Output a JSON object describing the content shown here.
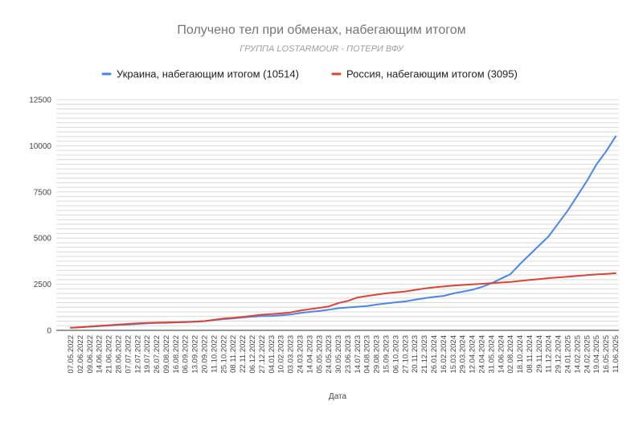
{
  "chart_data": {
    "type": "line",
    "title": "Получено тел при обменах, набегающим итогом",
    "subtitle": "ГРУППА LOSTARMOUR - ПОТЕРИ ВФУ",
    "xlabel": "Дата",
    "ylabel": "",
    "ylim": [
      0,
      12500
    ],
    "yticks": [
      0,
      2500,
      5000,
      7500,
      10000,
      12500
    ],
    "y_tick_labels": [
      "0",
      "2500",
      "5000",
      "7500",
      "10000",
      "12500"
    ],
    "grid": true,
    "legend_position": "top",
    "x": [
      "07.05.2022",
      "02.06.2022",
      "09.06.2022",
      "14.06.2022",
      "21.06.2022",
      "28.06.2022",
      "07.07.2022",
      "12.07.2022",
      "19.07.2022",
      "26.07.2022",
      "09.08.2022",
      "16.08.2022",
      "06.09.2022",
      "13.09.2022",
      "20.09.2022",
      "11.10.2022",
      "25.10.2022",
      "08.11.2022",
      "22.11.2022",
      "06.12.2022",
      "27.12.2022",
      "04.01.2023",
      "10.02.2023",
      "03.03.2023",
      "24.03.2023",
      "14.04.2023",
      "05.05.2023",
      "24.05.2023",
      "30.05.2023",
      "23.06.2023",
      "14.07.2023",
      "04.08.2023",
      "29.08.2023",
      "15.09.2023",
      "06.10.2023",
      "27.10.2023",
      "20.11.2023",
      "21.12.2023",
      "26.01.2024",
      "16.02.2024",
      "15.03.2024",
      "29.03.2024",
      "12.04.2024",
      "24.04.2024",
      "31.05.2024",
      "14.06.2024",
      "02.08.2024",
      "18.10.2024",
      "08.11.2024",
      "29.11.2024",
      "11.12.2024",
      "29.12.2024",
      "24.01.2025",
      "14.02.2025",
      "24.02.2025",
      "19.04.2025",
      "16.05.2025",
      "11.06.2025"
    ],
    "series": [
      {
        "name": "Украина, набегающим итогом (10514)",
        "color": "#4a86e8",
        "values": [
          144,
          170,
          200,
          230,
          260,
          290,
          320,
          350,
          380,
          400,
          410,
          430,
          450,
          480,
          500,
          560,
          610,
          650,
          700,
          740,
          770,
          780,
          820,
          860,
          940,
          1000,
          1050,
          1120,
          1200,
          1240,
          1280,
          1320,
          1400,
          1460,
          1520,
          1570,
          1660,
          1740,
          1810,
          1870,
          2000,
          2100,
          2200,
          2350,
          2550,
          2800,
          3050,
          3600,
          4100,
          4600,
          5100,
          5800,
          6500,
          7300,
          8100,
          9000,
          9700,
          10514
        ]
      },
      {
        "name": "Россия, набегающим итогом (3095)",
        "color": "#db4437",
        "values": [
          144,
          170,
          210,
          250,
          280,
          320,
          350,
          380,
          400,
          420,
          430,
          440,
          455,
          470,
          500,
          570,
          640,
          680,
          730,
          790,
          850,
          880,
          920,
          970,
          1070,
          1150,
          1220,
          1300,
          1480,
          1600,
          1780,
          1860,
          1940,
          2010,
          2060,
          2110,
          2190,
          2270,
          2330,
          2380,
          2430,
          2460,
          2490,
          2520,
          2560,
          2590,
          2620,
          2680,
          2730,
          2780,
          2830,
          2870,
          2910,
          2950,
          2990,
          3030,
          3060,
          3095
        ]
      }
    ]
  }
}
